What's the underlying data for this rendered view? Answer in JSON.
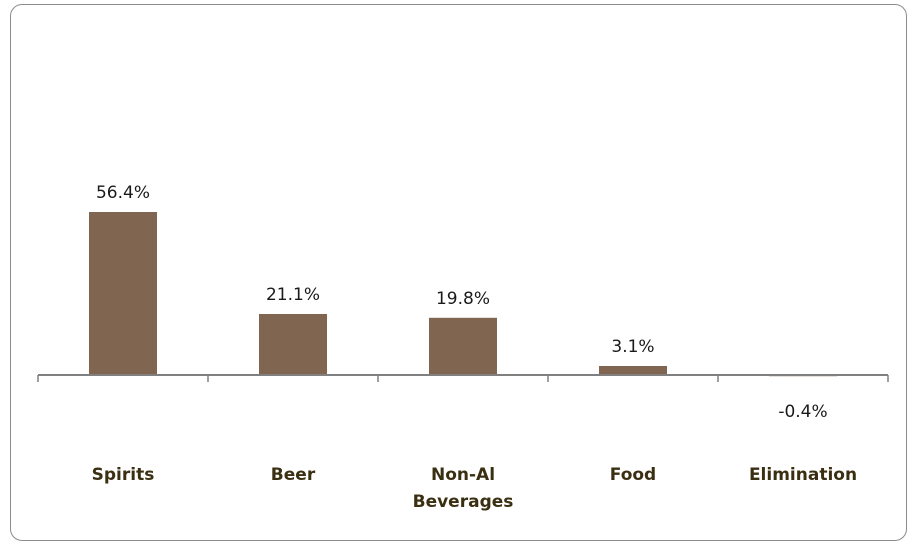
{
  "chart_data": {
    "type": "bar",
    "categories": [
      "Spirits",
      "Beer",
      "Non-Al Beverages",
      "Food",
      "Elimination"
    ],
    "category_lines": [
      [
        "Spirits"
      ],
      [
        "Beer"
      ],
      [
        "Non-Al",
        "Beverages"
      ],
      [
        "Food"
      ],
      [
        "Elimination"
      ]
    ],
    "values": [
      56.4,
      21.1,
      19.8,
      3.1,
      -0.4
    ],
    "data_labels": [
      "56.4%",
      "21.1%",
      "19.8%",
      "3.1%",
      "-0.4%"
    ],
    "title": "",
    "xlabel": "",
    "ylabel": "",
    "ylim": [
      -0.4,
      56.4
    ],
    "unit": "%",
    "grid": false,
    "legend": "none",
    "colors": {
      "bar": "#806650",
      "axis": "#808080",
      "category_text": "#3b2f12",
      "frame": "#8c8c8c"
    }
  }
}
